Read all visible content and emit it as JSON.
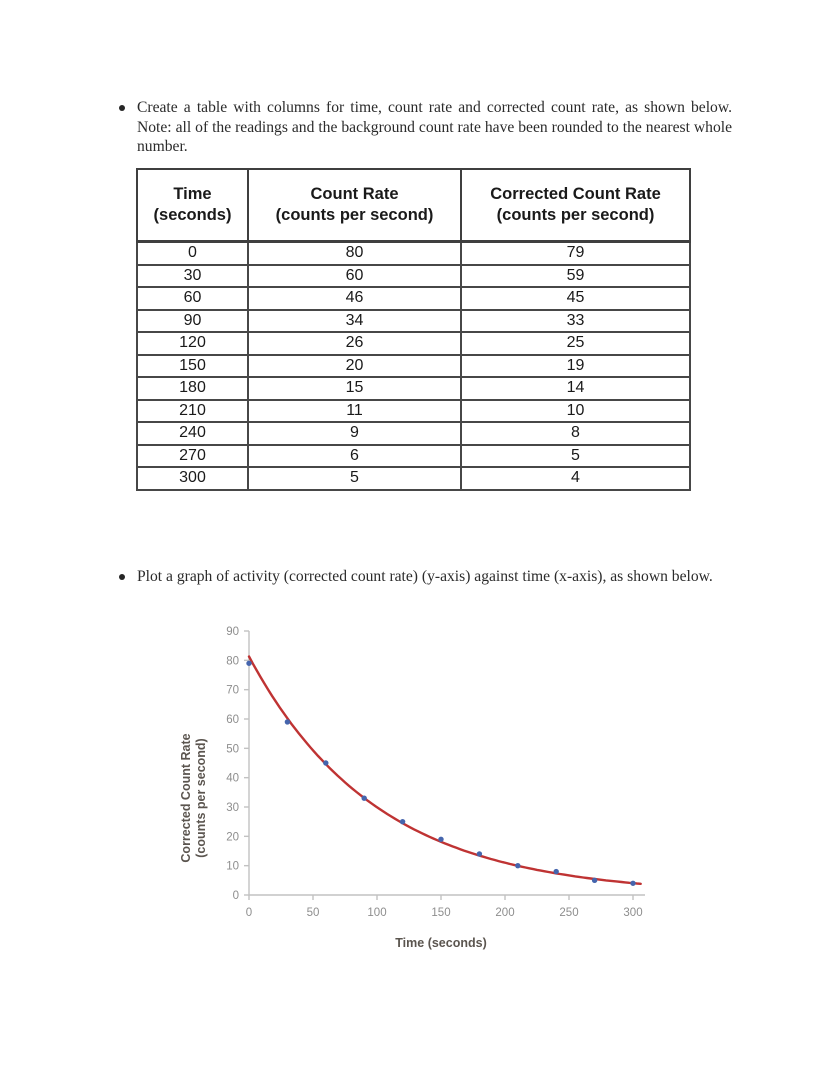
{
  "document": {
    "bullets": [
      {
        "text": "Create a table with columns for time, count rate and corrected count rate, as shown below. Note: all of the readings and the background count rate have been rounded to the nearest whole number."
      },
      {
        "text": "Plot a graph of activity (corrected count rate) (y-axis) against time (x-axis), as shown below."
      }
    ]
  },
  "table": {
    "columns": [
      {
        "title": "Time",
        "unit": "(seconds)"
      },
      {
        "title": "Count Rate",
        "unit": "(counts per second)"
      },
      {
        "title": "Corrected Count Rate",
        "unit": "(counts per second)"
      }
    ],
    "rows": [
      [
        "0",
        "80",
        "79"
      ],
      [
        "30",
        "60",
        "59"
      ],
      [
        "60",
        "46",
        "45"
      ],
      [
        "90",
        "34",
        "33"
      ],
      [
        "120",
        "26",
        "25"
      ],
      [
        "150",
        "20",
        "19"
      ],
      [
        "180",
        "15",
        "14"
      ],
      [
        "210",
        "11",
        "10"
      ],
      [
        "240",
        "9",
        "8"
      ],
      [
        "270",
        "6",
        "5"
      ],
      [
        "300",
        "5",
        "4"
      ]
    ]
  },
  "chart_data": {
    "type": "scatter",
    "title": "",
    "xlabel": "Time (seconds)",
    "ylabel": "Corrected Count Rate\n(counts per second)",
    "x": [
      0,
      30,
      60,
      90,
      120,
      150,
      180,
      210,
      240,
      270,
      300
    ],
    "series": [
      {
        "name": "Corrected count rate data points",
        "type": "scatter",
        "values": [
          79,
          59,
          45,
          33,
          25,
          19,
          14,
          10,
          8,
          5,
          4
        ]
      },
      {
        "name": "Exponential trend line",
        "type": "line",
        "fit": {
          "a": 81.3,
          "k": 0.01,
          "t_end": 306
        }
      }
    ],
    "xlim": [
      0,
      300
    ],
    "ylim": [
      0,
      90
    ],
    "xticks": [
      0,
      50,
      100,
      150,
      200,
      250,
      300
    ],
    "yticks": [
      0,
      10,
      20,
      30,
      40,
      50,
      60,
      70,
      80,
      90
    ],
    "grid": false,
    "legend": "none",
    "colors": {
      "curve": "#bf3333",
      "points": "#4565ad",
      "axis": "#c2c2c2",
      "tick_labels": "#8e8e8e",
      "axis_titles": "#5b554f"
    }
  }
}
